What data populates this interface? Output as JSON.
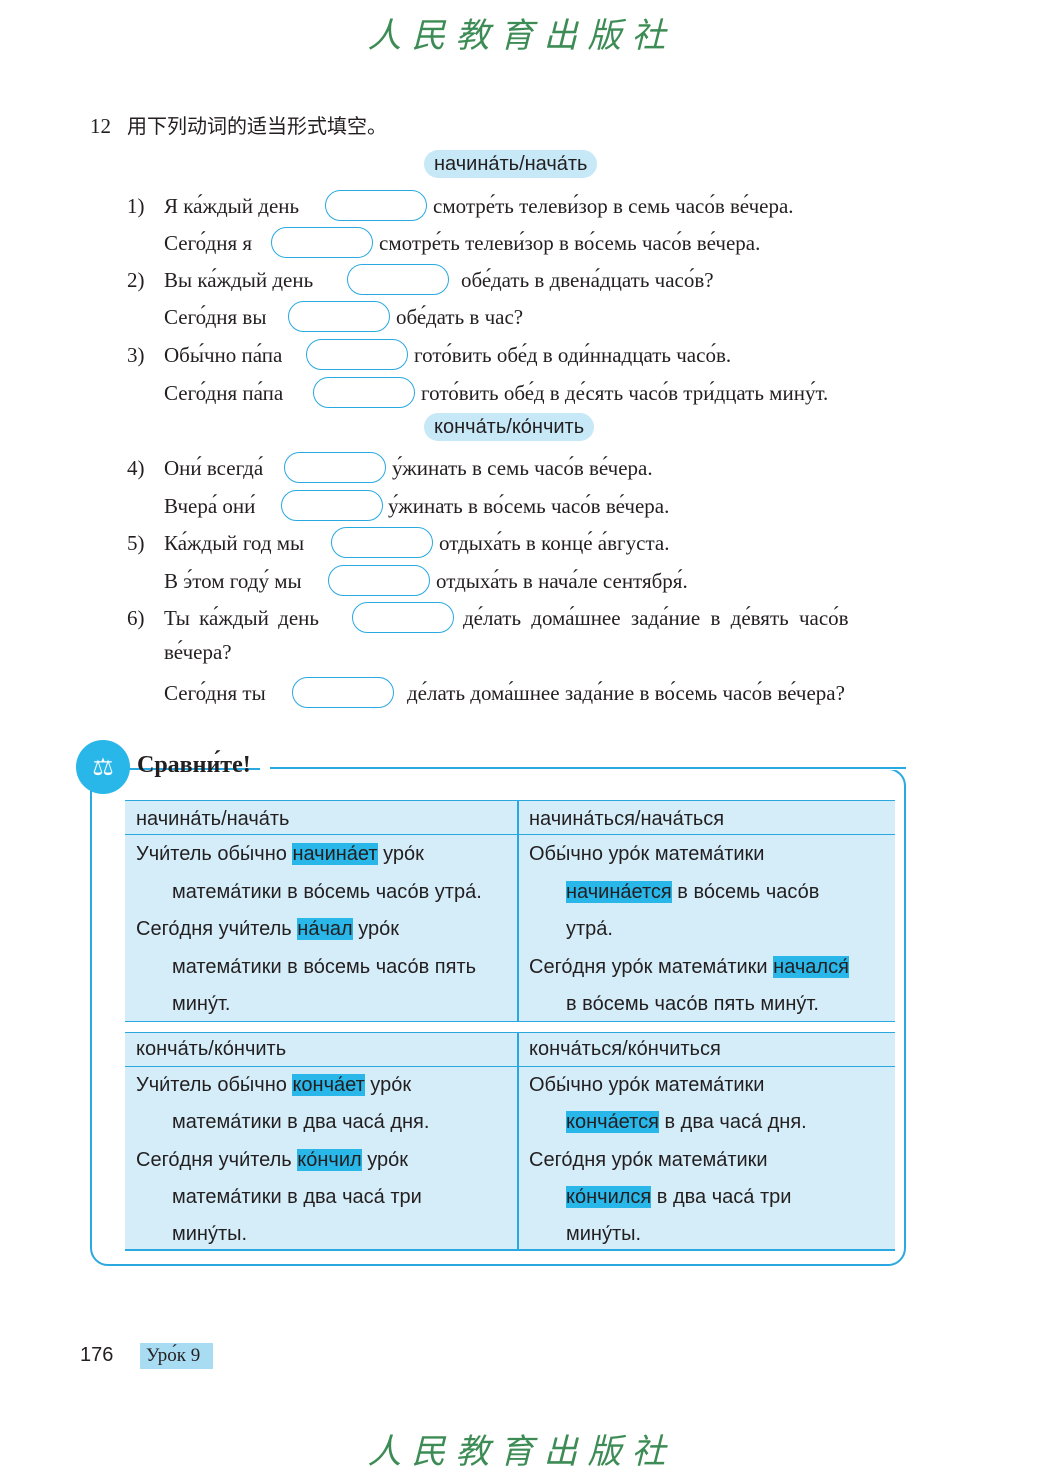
{
  "header_logo": "人民教育出版社",
  "footer_logo": "人民教育出版社",
  "exercise": {
    "number": "12",
    "instruction": "用下列动词的适当形式填空。",
    "tag1": "начина́ть/нача́ть",
    "tag2": "конча́ть/ко́нчить",
    "lines": [
      {
        "n": "1)",
        "a": "Я ка́ждый день",
        "b": "смотре́ть телеви́зор в семь часо́в ве́чера."
      },
      {
        "n": "",
        "a": "Сего́дня я",
        "b": "смотре́ть телеви́зор в во́семь часо́в ве́чера."
      },
      {
        "n": "2)",
        "a": "Вы ка́ждый день",
        "b": "обе́дать в двена́дцать часо́в?"
      },
      {
        "n": "",
        "a": "Сего́дня вы",
        "b": "обе́дать в час?"
      },
      {
        "n": "3)",
        "a": "Обы́чно па́па",
        "b": "гото́вить обе́д в оди́ннадцать часо́в."
      },
      {
        "n": "",
        "a": "Сего́дня па́па",
        "b": "гото́вить обе́д в де́сять часо́в три́дцать мину́т."
      },
      {
        "n": "4)",
        "a": "Они́ всегда́",
        "b": "у́жинать в семь часо́в ве́чера."
      },
      {
        "n": "",
        "a": "Вчера́ они́",
        "b": "у́жинать в во́семь часо́в ве́чера."
      },
      {
        "n": "5)",
        "a": "Ка́ждый год мы",
        "b": "отдыха́ть в конце́ а́вгуста."
      },
      {
        "n": "",
        "a": "В э́том году́ мы",
        "b": "отдыха́ть в нача́ле сентября́."
      },
      {
        "n": "6)",
        "a": "Ты ка́ждый день",
        "b": "де́лать дома́шнее зада́ние в де́вять часо́в",
        "c": "ве́чера?"
      },
      {
        "n": "",
        "a": "Сего́дня ты",
        "b": "де́лать дома́шнее зада́ние в во́семь часо́в ве́чера?"
      }
    ]
  },
  "compare": {
    "title": "Сравни́те!",
    "h1": "начина́ть/нача́ть",
    "h2": "начина́ться/нача́ться",
    "h3": "конча́ть/ко́нчить",
    "h4": "конча́ться/ко́нчиться",
    "c1": [
      {
        "a": "Учи́тель обы́чно ",
        "h": "начина́ет",
        "b": " уро́к"
      },
      {
        "a": "матема́тики в во́семь часо́в утра́."
      },
      {
        "a": "Сего́дня учи́тель ",
        "h": "на́чал",
        "b": " уро́к"
      },
      {
        "a": "матема́тики в во́семь часо́в пять"
      },
      {
        "a": "мину́т."
      }
    ],
    "c2": [
      {
        "a": "Обы́чно уро́к матема́тики"
      },
      {
        "a": "",
        "h": "начина́ется",
        "b": " в во́семь часо́в"
      },
      {
        "a": "утра́."
      },
      {
        "a": "Сего́дня уро́к матема́тики ",
        "h": "начался́"
      },
      {
        "a": "в во́семь часо́в пять мину́т."
      }
    ],
    "c3": [
      {
        "a": "Учи́тель обы́чно ",
        "h": "конча́ет",
        "b": " уро́к"
      },
      {
        "a": "матема́тики в два часа́ дня."
      },
      {
        "a": "Сего́дня учи́тель ",
        "h": "ко́нчил",
        "b": " уро́к"
      },
      {
        "a": "матема́тики в два часа́ три"
      },
      {
        "a": "мину́ты."
      }
    ],
    "c4": [
      {
        "a": "Обы́чно уро́к матема́тики"
      },
      {
        "a": "",
        "h": "конча́ется",
        "b": " в два часа́ дня."
      },
      {
        "a": "Сего́дня уро́к матема́тики"
      },
      {
        "a": "",
        "h": "ко́нчился",
        "b": " в два часа́ три"
      },
      {
        "a": "мину́ты."
      }
    ]
  },
  "footer": {
    "page": "176",
    "lesson": "Уро́к 9"
  },
  "colors": {
    "accent": "#29a9e0",
    "table_bg": "#d4edf9",
    "highlight": "#29b6e9",
    "logo": "#3d8c55"
  }
}
